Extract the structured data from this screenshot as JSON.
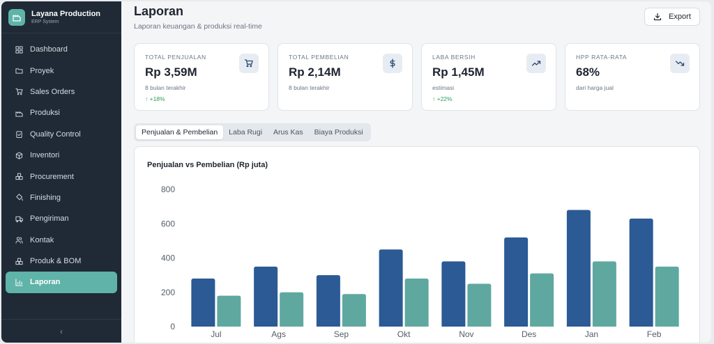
{
  "brand": {
    "title": "Layana Production",
    "subtitle": "ERP System"
  },
  "sidebar": {
    "items": [
      {
        "label": "Dashboard",
        "icon": "grid-icon"
      },
      {
        "label": "Proyek",
        "icon": "folder-icon"
      },
      {
        "label": "Sales Orders",
        "icon": "cart-icon"
      },
      {
        "label": "Produksi",
        "icon": "factory-icon"
      },
      {
        "label": "Quality Control",
        "icon": "clipboard-check-icon"
      },
      {
        "label": "Inventori",
        "icon": "box-icon"
      },
      {
        "label": "Procurement",
        "icon": "boxes-icon"
      },
      {
        "label": "Finishing",
        "icon": "paint-bucket-icon"
      },
      {
        "label": "Pengiriman",
        "icon": "truck-icon"
      },
      {
        "label": "Kontak",
        "icon": "users-icon"
      },
      {
        "label": "Produk & BOM",
        "icon": "boxes-icon"
      },
      {
        "label": "Laporan",
        "icon": "bar-chart-icon",
        "active": true
      }
    ],
    "collapse_label": "‹"
  },
  "header": {
    "title": "Laporan",
    "subtitle": "Laporan keuangan & produksi real-time",
    "export_label": "Export"
  },
  "cards": [
    {
      "label": "TOTAL PENJUALAN",
      "value": "Rp 3,59M",
      "sub": "8 bulan terakhir",
      "trend": "↑ +18%",
      "icon": "cart-icon"
    },
    {
      "label": "TOTAL PEMBELIAN",
      "value": "Rp 2,14M",
      "sub": "8 bulan terakhir",
      "trend": "",
      "icon": "dollar-icon"
    },
    {
      "label": "LABA BERSIH",
      "value": "Rp 1,45M",
      "sub": "estimasi",
      "trend": "↑ +22%",
      "icon": "trending-up-icon"
    },
    {
      "label": "HPP RATA-RATA",
      "value": "68%",
      "sub": "dari harga jual",
      "trend": "",
      "icon": "trending-down-icon"
    }
  ],
  "tabs": [
    {
      "label": "Penjualan & Pembelian",
      "active": true
    },
    {
      "label": "Laba Rugi"
    },
    {
      "label": "Arus Kas"
    },
    {
      "label": "Biaya Produksi"
    }
  ],
  "colors": {
    "accent": "#5fb3a8",
    "sidebar_bg": "#1f2a36",
    "series_primary": "#2b5a94",
    "series_secondary": "#5fa8a0",
    "trend_up": "#2e9a5b"
  },
  "chart_data": {
    "type": "bar",
    "title": "Penjualan vs Pembelian (Rp juta)",
    "xlabel": "",
    "ylabel": "",
    "categories": [
      "Jul",
      "Ags",
      "Sep",
      "Okt",
      "Nov",
      "Des",
      "Jan",
      "Feb"
    ],
    "series": [
      {
        "values": [
          280,
          350,
          300,
          450,
          380,
          520,
          680,
          630
        ],
        "color": "#2b5a94"
      },
      {
        "values": [
          180,
          200,
          190,
          280,
          250,
          310,
          380,
          350
        ],
        "color": "#5fa8a0"
      }
    ],
    "ylim": [
      0,
      800
    ],
    "yticks": [
      "0",
      "200",
      "400",
      "600",
      "800"
    ],
    "grid": false,
    "legend": "none"
  }
}
